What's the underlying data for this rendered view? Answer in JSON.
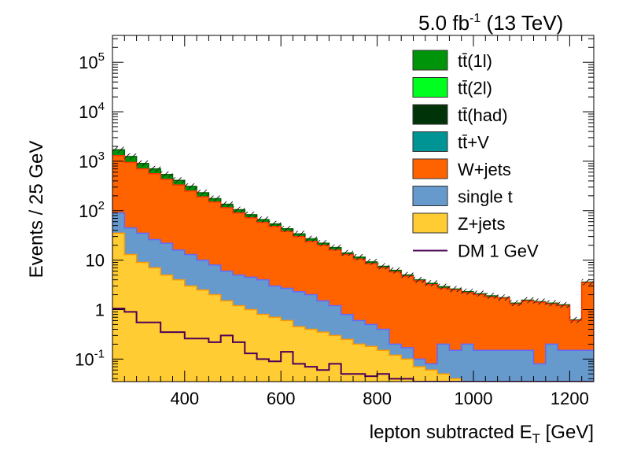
{
  "chart_data": {
    "type": "area",
    "header": {
      "lumi": "5.0 fb",
      "lumi_sup": "-1",
      "energy": "(13 TeV)"
    },
    "xlabel": "lepton subtracted",
    "xlabel_symbol": "E",
    "xlabel_sub": "T",
    "xlabel_unit": "[GeV]",
    "ylabel": "Events / 25 GeV",
    "xlim": [
      250,
      1250
    ],
    "ylim": [
      0.035,
      350000
    ],
    "log_y": true,
    "x_ticks": [
      400,
      600,
      800,
      1000,
      1200
    ],
    "y_ticks": [
      {
        "value": 100000,
        "base": "10",
        "exp": "5"
      },
      {
        "value": 10000,
        "base": "10",
        "exp": "4"
      },
      {
        "value": 1000,
        "base": "10",
        "exp": "3"
      },
      {
        "value": 100,
        "base": "10",
        "exp": "2"
      },
      {
        "value": 10,
        "base": "10",
        "exp": ""
      },
      {
        "value": 1,
        "base": "1",
        "exp": ""
      },
      {
        "value": 0.1,
        "base": "10",
        "exp": "-1"
      }
    ],
    "legend_position": "top-right",
    "bin_width": 25,
    "x_bin_low_edges": [
      250,
      275,
      300,
      325,
      350,
      375,
      400,
      425,
      450,
      475,
      500,
      525,
      550,
      575,
      600,
      625,
      650,
      675,
      700,
      725,
      750,
      775,
      800,
      825,
      850,
      875,
      900,
      925,
      950,
      975,
      1000,
      1025,
      1050,
      1075,
      1100,
      1125,
      1150,
      1175,
      1200,
      1225
    ],
    "stacked_totals_order": [
      "Z+jets",
      "single t",
      "W+jets",
      "tt(1l)+rest"
    ],
    "cumulative": {
      "Z+jets": [
        35,
        13,
        9,
        7,
        5,
        4,
        3,
        2.5,
        2,
        1.5,
        1.2,
        1,
        0.8,
        0.7,
        0.6,
        0.45,
        0.4,
        0.35,
        0.3,
        0.25,
        0.2,
        0.18,
        0.15,
        0.12,
        0.1,
        0.07,
        0.06,
        0.05,
        0.04,
        0.035,
        0.035,
        0.035,
        0.035,
        0.035,
        0.035,
        0.035,
        0.035,
        0.035,
        0.035,
        0.035
      ],
      "single t": [
        90,
        45,
        35,
        26,
        22,
        16,
        13,
        10,
        8,
        6,
        5,
        4.5,
        4,
        3,
        2.7,
        2.3,
        2,
        1.5,
        1.2,
        0.8,
        0.6,
        0.5,
        0.4,
        0.2,
        0.17,
        0.1,
        0.08,
        0.2,
        0.15,
        0.2,
        0.15,
        0.15,
        0.15,
        0.15,
        0.15,
        0.08,
        0.2,
        0.15,
        0.15,
        0.15
      ],
      "W+jets": [
        1300,
        950,
        700,
        560,
        430,
        330,
        250,
        190,
        150,
        115,
        90,
        72,
        58,
        48,
        38,
        30,
        24,
        20,
        16,
        13,
        10.5,
        8.5,
        7,
        5.8,
        4.7,
        3.8,
        3.2,
        2.7,
        2.5,
        2.2,
        2.0,
        1.8,
        1.7,
        1.3,
        1.5,
        1.4,
        1.3,
        1.2,
        0.6,
        3.5
      ],
      "tt(1l)+rest": [
        1700,
        1250,
        900,
        700,
        540,
        410,
        310,
        230,
        175,
        135,
        105,
        83,
        66,
        54,
        43,
        34,
        27,
        22,
        18,
        14,
        11.5,
        9.2,
        7.5,
        6.2,
        5.0,
        4.0,
        3.4,
        2.9,
        2.6,
        2.3,
        2.1,
        1.9,
        1.75,
        1.35,
        1.55,
        1.45,
        1.35,
        1.25,
        0.62,
        3.6
      ]
    },
    "dm_line": {
      "name": "DM 1 GeV",
      "values": [
        1.05,
        0.9,
        0.55,
        0.55,
        0.35,
        0.35,
        0.26,
        0.26,
        0.22,
        0.3,
        0.22,
        0.13,
        0.1,
        0.09,
        0.14,
        0.08,
        0.07,
        0.06,
        0.08,
        0.05,
        0.05,
        0.045,
        0.05,
        0.04,
        0.04,
        0.035,
        0.035,
        0.035,
        0.035,
        0.035,
        0.035,
        0.035,
        0.035,
        0.035,
        0.035,
        0.035,
        0.035,
        0.035,
        0.035,
        0.035
      ]
    },
    "legend": [
      {
        "label": "tt̄(1l)",
        "color": "#00940a",
        "type": "fill"
      },
      {
        "label": "tt̄(2l)",
        "color": "#00ff1e",
        "type": "fill"
      },
      {
        "label": "tt̄(had)",
        "color": "#003308",
        "type": "fill"
      },
      {
        "label": "tt̄+V",
        "color": "#009494",
        "type": "fill"
      },
      {
        "label": "W+jets",
        "color": "#ff6300",
        "type": "fill"
      },
      {
        "label": "single t",
        "color": "#6699cc",
        "type": "fill"
      },
      {
        "label": "Z+jets",
        "color": "#ffcc33",
        "type": "fill"
      },
      {
        "label": "DM 1 GeV",
        "color": "#4d0057",
        "type": "line"
      }
    ],
    "colors": {
      "Z+jets": "#ffcc33",
      "Z+jets_edge": "#ff9900",
      "single t": "#6699cc",
      "single t_edge": "#6666ff",
      "W+jets": "#ff6300",
      "W+jets_edge": "#ff3300",
      "tt(1l)+rest": "#00940a",
      "tt(1l)+rest_edge": "#006600",
      "dm": "#4d0057"
    }
  }
}
